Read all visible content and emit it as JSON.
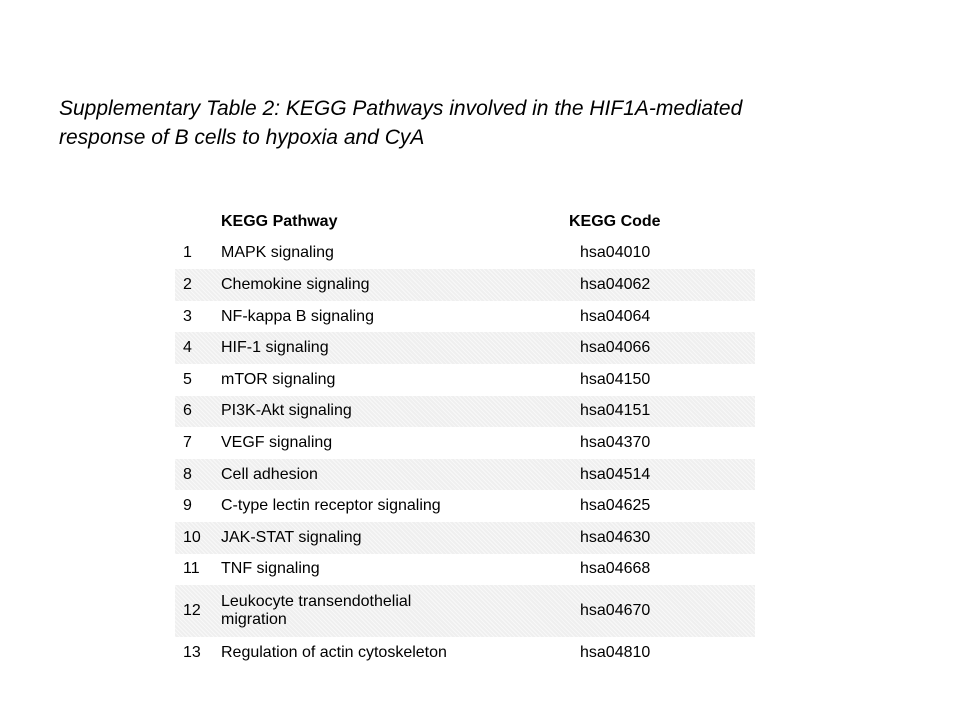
{
  "caption": {
    "line1": "Supplementary Table 2: KEGG Pathways involved in the HIF1A-mediated",
    "line2": "response of B cells to hypoxia and CyA"
  },
  "table": {
    "headers": {
      "number": "",
      "pathway": "KEGG Pathway",
      "code": "KEGG Code"
    },
    "rows": [
      {
        "num": "1",
        "pathway": "MAPK signaling",
        "code": "hsa04010"
      },
      {
        "num": "2",
        "pathway": "Chemokine signaling",
        "code": "hsa04062"
      },
      {
        "num": "3",
        "pathway": "NF-kappa B signaling",
        "code": "hsa04064"
      },
      {
        "num": "4",
        "pathway": "HIF-1 signaling",
        "code": "hsa04066"
      },
      {
        "num": "5",
        "pathway": "mTOR signaling",
        "code": "hsa04150"
      },
      {
        "num": "6",
        "pathway": "PI3K-Akt signaling",
        "code": "hsa04151"
      },
      {
        "num": "7",
        "pathway": "VEGF signaling",
        "code": "hsa04370"
      },
      {
        "num": "8",
        "pathway": "Cell adhesion",
        "code": "hsa04514"
      },
      {
        "num": "9",
        "pathway": "C-type lectin receptor signaling",
        "code": "hsa04625"
      },
      {
        "num": "10",
        "pathway": "JAK-STAT signaling",
        "code": "hsa04630"
      },
      {
        "num": "11",
        "pathway": "TNF signaling",
        "code": "hsa04668"
      },
      {
        "num": "12",
        "pathway": "Leukocyte transendothelial migration",
        "code": "hsa04670"
      },
      {
        "num": "13",
        "pathway": "Regulation of actin cytoskeleton",
        "code": "hsa04810"
      }
    ]
  }
}
